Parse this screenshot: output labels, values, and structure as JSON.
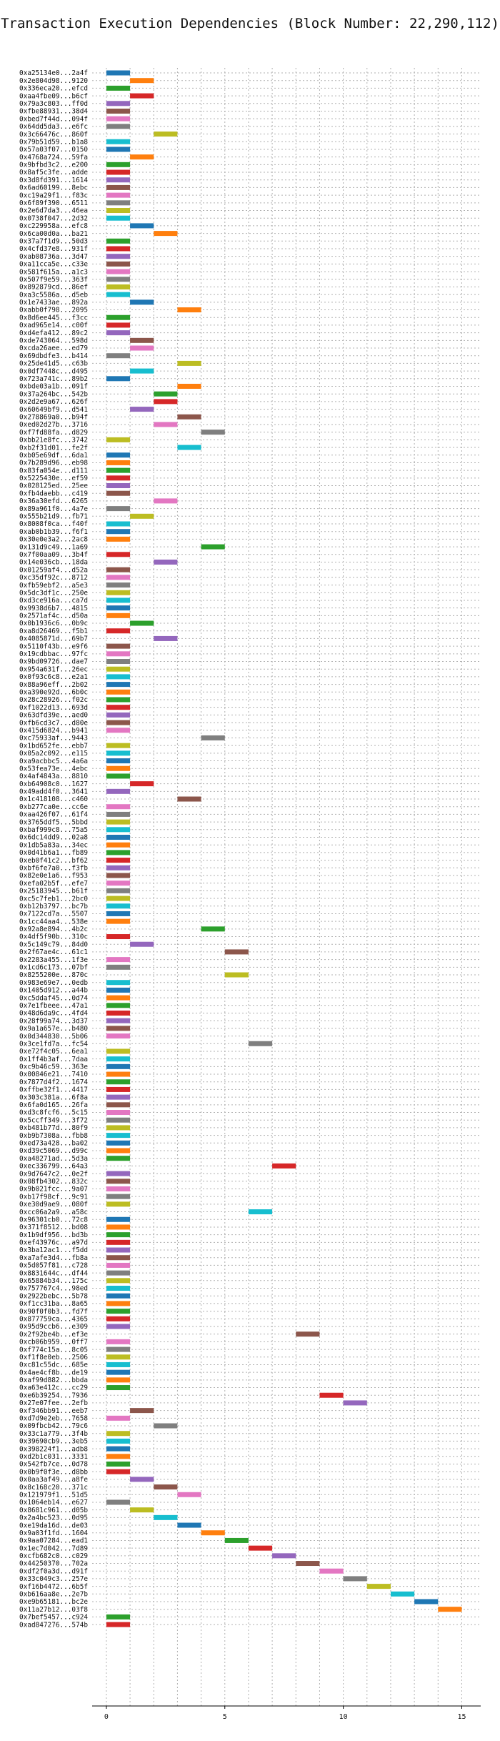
{
  "chart_data": {
    "type": "bar",
    "orientation": "horizontal",
    "chart_kind": "gantt",
    "title": "Transaction Execution Dependencies (Block Number: 22,290,112)",
    "xlabel": "",
    "ylabel": "",
    "xlim": [
      -0.6,
      15.8
    ],
    "x_ticks": [
      0,
      5,
      10,
      15
    ],
    "grid": true,
    "legend": "none",
    "palette": [
      "#1f77b4",
      "#ff7f0e",
      "#2ca02c",
      "#d62728",
      "#9467bd",
      "#8c564b",
      "#e377c2",
      "#7f7f7f",
      "#bcbd22",
      "#17becf"
    ],
    "transactions": [
      {
        "label": "0xa25134e0...2a4f",
        "start": 0
      },
      {
        "label": "0x2e804d98...9120",
        "start": 1
      },
      {
        "label": "0x336eca20...efcd",
        "start": 0
      },
      {
        "label": "0xaa4fbe09...b6cf",
        "start": 1
      },
      {
        "label": "0x79a3c803...ff0d",
        "start": 0
      },
      {
        "label": "0xfbe88931...38d4",
        "start": 0
      },
      {
        "label": "0xbed7f44d...094f",
        "start": 0
      },
      {
        "label": "0x64dd5da3...e6fc",
        "start": 0
      },
      {
        "label": "0x3c66476c...860f",
        "start": 2
      },
      {
        "label": "0x79b51d59...b1a8",
        "start": 0
      },
      {
        "label": "0x57a03f07...0150",
        "start": 0
      },
      {
        "label": "0x4768a724...59fa",
        "start": 1
      },
      {
        "label": "0x9bfbd3c2...e200",
        "start": 0
      },
      {
        "label": "0x8af5c3fe...adde",
        "start": 0
      },
      {
        "label": "0x3d8fd391...1614",
        "start": 0
      },
      {
        "label": "0x6ad60199...8ebc",
        "start": 0
      },
      {
        "label": "0xc19a29f1...f83c",
        "start": 0
      },
      {
        "label": "0x6f89f390...6511",
        "start": 0
      },
      {
        "label": "0x2e6d7da3...46ea",
        "start": 0
      },
      {
        "label": "0x0738f047...2d32",
        "start": 0
      },
      {
        "label": "0xc229958a...efc8",
        "start": 1
      },
      {
        "label": "0x6ca00d0a...ba21",
        "start": 2
      },
      {
        "label": "0x37a7f1d9...50d3",
        "start": 0
      },
      {
        "label": "0x4cfd37e8...931f",
        "start": 0
      },
      {
        "label": "0xab08736a...3d47",
        "start": 0
      },
      {
        "label": "0xa11cca5e...c33e",
        "start": 0
      },
      {
        "label": "0x581f615a...a1c3",
        "start": 0
      },
      {
        "label": "0x507f9e59...363f",
        "start": 0
      },
      {
        "label": "0x892879cd...86ef",
        "start": 0
      },
      {
        "label": "0xa3c5586a...d5eb",
        "start": 0
      },
      {
        "label": "0x1e7433ae...892a",
        "start": 1
      },
      {
        "label": "0xabb0f798...2095",
        "start": 3
      },
      {
        "label": "0x8d6ee445...f3cc",
        "start": 0
      },
      {
        "label": "0xad965e14...c00f",
        "start": 0
      },
      {
        "label": "0xd4efa412...89c2",
        "start": 0
      },
      {
        "label": "0xde743064...598d",
        "start": 1
      },
      {
        "label": "0xcda26aee...ed79",
        "start": 1
      },
      {
        "label": "0x69dbdfe3...b414",
        "start": 0
      },
      {
        "label": "0x25de41d5...c63b",
        "start": 3
      },
      {
        "label": "0x0df7448c...d495",
        "start": 1
      },
      {
        "label": "0x723a741c...89b2",
        "start": 0
      },
      {
        "label": "0xbde03a1b...091f",
        "start": 3
      },
      {
        "label": "0x37a264bc...542b",
        "start": 2
      },
      {
        "label": "0x2d2e9a67...626f",
        "start": 2
      },
      {
        "label": "0x60649bf9...d541",
        "start": 1
      },
      {
        "label": "0x278869a0...b94f",
        "start": 3
      },
      {
        "label": "0xed02d27b...3716",
        "start": 2
      },
      {
        "label": "0xf7fd88fa...d829",
        "start": 4
      },
      {
        "label": "0xbb21e8fc...3742",
        "start": 0
      },
      {
        "label": "0xb2f31d01...fe2f",
        "start": 3
      },
      {
        "label": "0xb05e69df...6da1",
        "start": 0
      },
      {
        "label": "0x7b289d96...eb98",
        "start": 0
      },
      {
        "label": "0x83fa054e...d111",
        "start": 0
      },
      {
        "label": "0x5225430e...ef59",
        "start": 0
      },
      {
        "label": "0x028125ed...25ee",
        "start": 0
      },
      {
        "label": "0xfb4daebb...c419",
        "start": 0
      },
      {
        "label": "0x36a30efd...6265",
        "start": 2
      },
      {
        "label": "0x89a961f0...4a7e",
        "start": 0
      },
      {
        "label": "0x555b21d9...fb71",
        "start": 1
      },
      {
        "label": "0x8008f0ca...f40f",
        "start": 0
      },
      {
        "label": "0xab0b1b39...f6f1",
        "start": 0
      },
      {
        "label": "0x30e0e3a2...2ac8",
        "start": 0
      },
      {
        "label": "0x131d9c49...1a69",
        "start": 4
      },
      {
        "label": "0x7f00aa09...3b4f",
        "start": 0
      },
      {
        "label": "0x14e036cb...18da",
        "start": 2
      },
      {
        "label": "0x01259af4...d52a",
        "start": 0
      },
      {
        "label": "0xc35df92c...8712",
        "start": 0
      },
      {
        "label": "0xfb59ebf2...a5e3",
        "start": 0
      },
      {
        "label": "0x5dc3df1c...250e",
        "start": 0
      },
      {
        "label": "0xd3ce916a...ca7d",
        "start": 0
      },
      {
        "label": "0x9938d6b7...4815",
        "start": 0
      },
      {
        "label": "0x2571af4c...d50a",
        "start": 0
      },
      {
        "label": "0x0b1936c6...0b9c",
        "start": 1
      },
      {
        "label": "0xa8d26469...f5b1",
        "start": 0
      },
      {
        "label": "0x4085871d...69b7",
        "start": 2
      },
      {
        "label": "0x5110f43b...e9f6",
        "start": 0
      },
      {
        "label": "0x19cdbbac...97fc",
        "start": 0
      },
      {
        "label": "0x9bd09726...dae7",
        "start": 0
      },
      {
        "label": "0x954a631f...26ec",
        "start": 0
      },
      {
        "label": "0x0f93c6c8...e2a1",
        "start": 0
      },
      {
        "label": "0x88a96eff...2b02",
        "start": 0
      },
      {
        "label": "0xa390e92d...6b0c",
        "start": 0
      },
      {
        "label": "0x28c28926...f02c",
        "start": 0
      },
      {
        "label": "0xf1022d13...693d",
        "start": 0
      },
      {
        "label": "0x63dfd39e...aed0",
        "start": 0
      },
      {
        "label": "0xfb6cd3c7...d80e",
        "start": 0
      },
      {
        "label": "0x415d6824...b941",
        "start": 0
      },
      {
        "label": "0xc75933af...9443",
        "start": 4
      },
      {
        "label": "0x1bd652fe...ebb7",
        "start": 0
      },
      {
        "label": "0x05a2c092...e115",
        "start": 0
      },
      {
        "label": "0xa9acbbc5...4a6a",
        "start": 0
      },
      {
        "label": "0x53fea73e...4ebc",
        "start": 0
      },
      {
        "label": "0x4af4843a...8810",
        "start": 0
      },
      {
        "label": "0xb64908c0...1627",
        "start": 1
      },
      {
        "label": "0x49add4f0...3641",
        "start": 0
      },
      {
        "label": "0x1c418108...c460",
        "start": 3
      },
      {
        "label": "0xb277ca0e...cc6e",
        "start": 0
      },
      {
        "label": "0xaa426f07...61f4",
        "start": 0
      },
      {
        "label": "0x3765ddf5...5bbd",
        "start": 0
      },
      {
        "label": "0xbaf999c8...75a5",
        "start": 0
      },
      {
        "label": "0x6dc14dd9...02a8",
        "start": 0
      },
      {
        "label": "0x1db5a83a...34ec",
        "start": 0
      },
      {
        "label": "0x0d41b6a1...fb89",
        "start": 0
      },
      {
        "label": "0xeb0f41c2...bf62",
        "start": 0
      },
      {
        "label": "0xbf6fe7a0...f3fb",
        "start": 0
      },
      {
        "label": "0x82e0e1a6...f953",
        "start": 0
      },
      {
        "label": "0xefa02b5f...efe7",
        "start": 0
      },
      {
        "label": "0x25183945...b61f",
        "start": 0
      },
      {
        "label": "0xc5c7feb1...2bc0",
        "start": 0
      },
      {
        "label": "0xb12b3797...bc7b",
        "start": 0
      },
      {
        "label": "0x7122cd7a...5507",
        "start": 0
      },
      {
        "label": "0x1cc44aa4...538e",
        "start": 0
      },
      {
        "label": "0x92a8e894...4b2c",
        "start": 4
      },
      {
        "label": "0x4df5f90b...310c",
        "start": 0
      },
      {
        "label": "0x5c149c79...84d0",
        "start": 1
      },
      {
        "label": "0x2f67ae4c...61c1",
        "start": 5
      },
      {
        "label": "0x2283a455...1f3e",
        "start": 0
      },
      {
        "label": "0x1cd6c173...07bf",
        "start": 0
      },
      {
        "label": "0x8255200e...870c",
        "start": 5
      },
      {
        "label": "0x983e69e7...0edb",
        "start": 0
      },
      {
        "label": "0x1405d912...a44b",
        "start": 0
      },
      {
        "label": "0xc5ddaf45...0d74",
        "start": 0
      },
      {
        "label": "0x7e1fbeee...47a1",
        "start": 0
      },
      {
        "label": "0x48d6da9c...4fd4",
        "start": 0
      },
      {
        "label": "0x28f99a74...3d37",
        "start": 0
      },
      {
        "label": "0x9a1a657e...b480",
        "start": 0
      },
      {
        "label": "0x0d344830...5b06",
        "start": 0
      },
      {
        "label": "0x3ce1fd7a...fc54",
        "start": 6
      },
      {
        "label": "0xe72f4c05...6ea1",
        "start": 0
      },
      {
        "label": "0x1ff4b3af...7daa",
        "start": 0
      },
      {
        "label": "0xc9b46c59...363e",
        "start": 0
      },
      {
        "label": "0x00846e21...7410",
        "start": 0
      },
      {
        "label": "0x7877d4f2...1674",
        "start": 0
      },
      {
        "label": "0xffbe32f1...4417",
        "start": 0
      },
      {
        "label": "0x303c381a...6f8a",
        "start": 0
      },
      {
        "label": "0x6fa0d165...26fa",
        "start": 0
      },
      {
        "label": "0xd3c8fcf6...5c15",
        "start": 0
      },
      {
        "label": "0x5ccff349...3f72",
        "start": 0
      },
      {
        "label": "0xb481b77d...80f9",
        "start": 0
      },
      {
        "label": "0xb9b7308a...fbb8",
        "start": 0
      },
      {
        "label": "0xed73a428...ba02",
        "start": 0
      },
      {
        "label": "0xd39c5069...d99c",
        "start": 0
      },
      {
        "label": "0xa48271ad...5d3a",
        "start": 0
      },
      {
        "label": "0xec336799...64a3",
        "start": 7
      },
      {
        "label": "0x9d7647c2...0e2f",
        "start": 0
      },
      {
        "label": "0x08fb4302...832c",
        "start": 0
      },
      {
        "label": "0x9b021fcc...9a07",
        "start": 0
      },
      {
        "label": "0xb17f98cf...9c91",
        "start": 0
      },
      {
        "label": "0xe30d9ae9...080f",
        "start": 0
      },
      {
        "label": "0xcc06a2a9...a58c",
        "start": 6
      },
      {
        "label": "0x96301cb0...72c8",
        "start": 0
      },
      {
        "label": "0x371f8512...bd08",
        "start": 0
      },
      {
        "label": "0x1b9df956...bd3b",
        "start": 0
      },
      {
        "label": "0xef43976c...a97d",
        "start": 0
      },
      {
        "label": "0x3ba12ac1...f5dd",
        "start": 0
      },
      {
        "label": "0xa7afe3d4...fb8a",
        "start": 0
      },
      {
        "label": "0x5d057f81...c728",
        "start": 0
      },
      {
        "label": "0x8831644c...df44",
        "start": 0
      },
      {
        "label": "0x65884b34...175c",
        "start": 0
      },
      {
        "label": "0x757767c4...98ed",
        "start": 0
      },
      {
        "label": "0x2922bebc...5b78",
        "start": 0
      },
      {
        "label": "0xf1cc31ba...8a65",
        "start": 0
      },
      {
        "label": "0x90f0f0b3...fd7f",
        "start": 0
      },
      {
        "label": "0x877759ca...4365",
        "start": 0
      },
      {
        "label": "0x95d9ccb6...e309",
        "start": 0
      },
      {
        "label": "0x2f92be4b...ef3e",
        "start": 8
      },
      {
        "label": "0xcb06b959...0ff7",
        "start": 0
      },
      {
        "label": "0xf774c15a...8c05",
        "start": 0
      },
      {
        "label": "0xf1f8e0eb...2506",
        "start": 0
      },
      {
        "label": "0xc81c55dc...685e",
        "start": 0
      },
      {
        "label": "0x4ae4cf8b...de19",
        "start": 0
      },
      {
        "label": "0xaf99d882...bbda",
        "start": 0
      },
      {
        "label": "0xa63e412c...cc29",
        "start": 0
      },
      {
        "label": "0xe6b39254...7936",
        "start": 9
      },
      {
        "label": "0x27e07fee...2efb",
        "start": 10
      },
      {
        "label": "0xf346bb91...eeb7",
        "start": 1
      },
      {
        "label": "0xd7d9e2eb...7658",
        "start": 0
      },
      {
        "label": "0x09fbcb42...79c6",
        "start": 2
      },
      {
        "label": "0x33c1a779...3f4b",
        "start": 0
      },
      {
        "label": "0x39690cb9...3eb5",
        "start": 0
      },
      {
        "label": "0x398224f1...adb8",
        "start": 0
      },
      {
        "label": "0xd2b1c031...3331",
        "start": 0
      },
      {
        "label": "0x542fb7ce...0d78",
        "start": 0
      },
      {
        "label": "0x0b9f0f3e...d8bb",
        "start": 0
      },
      {
        "label": "0x0aa3af49...a8fe",
        "start": 1
      },
      {
        "label": "0x8c168c20...371c",
        "start": 2
      },
      {
        "label": "0x121979f1...51d5",
        "start": 3
      },
      {
        "label": "0x1064eb14...e627",
        "start": 0
      },
      {
        "label": "0x8681c961...d05b",
        "start": 1
      },
      {
        "label": "0x2a4bc523...0d95",
        "start": 2
      },
      {
        "label": "0xe19da16d...de03",
        "start": 3
      },
      {
        "label": "0x9a03f1fd...1604",
        "start": 4
      },
      {
        "label": "0x9aa07284...ead1",
        "start": 5
      },
      {
        "label": "0x1ec7d042...7d89",
        "start": 6
      },
      {
        "label": "0xcfb682c0...c029",
        "start": 7
      },
      {
        "label": "0x44250370...702a",
        "start": 8
      },
      {
        "label": "0xdf2f0a3d...d91f",
        "start": 9
      },
      {
        "label": "0x33c049c3...257e",
        "start": 10
      },
      {
        "label": "0xf16b4472...6b5f",
        "start": 11
      },
      {
        "label": "0xb616aa8e...2e7b",
        "start": 12
      },
      {
        "label": "0xe9b65181...bc2e",
        "start": 13
      },
      {
        "label": "0x11a27b12...03f8",
        "start": 14
      },
      {
        "label": "0x7bef5457...c924",
        "start": 0
      },
      {
        "label": "0xad847276...574b",
        "start": 0
      }
    ]
  }
}
